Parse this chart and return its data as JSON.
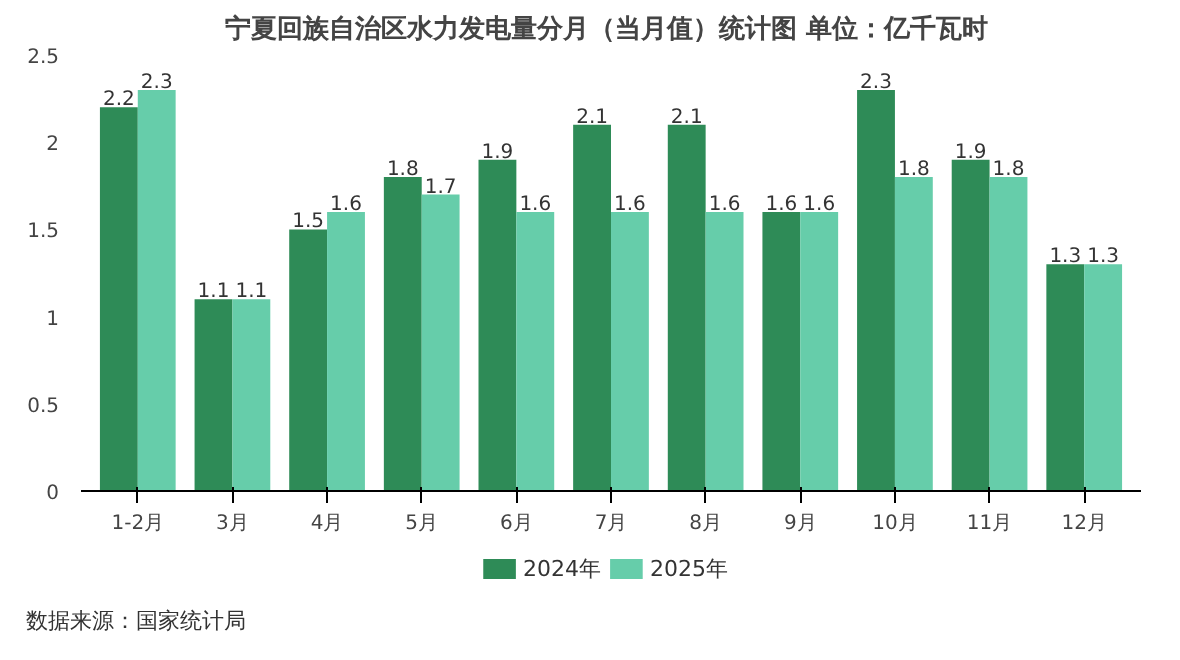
{
  "chart_data": {
    "type": "bar",
    "title": "宁夏回族自治区水力发电量分月（当月值）统计图  单位：亿千瓦时",
    "categories": [
      "1-2月",
      "3月",
      "4月",
      "5月",
      "6月",
      "7月",
      "8月",
      "9月",
      "10月",
      "11月",
      "12月"
    ],
    "series": [
      {
        "name": "2024年",
        "color": "#2e8b57",
        "values": [
          2.2,
          1.1,
          1.5,
          1.8,
          1.9,
          2.1,
          2.1,
          1.6,
          2.3,
          1.9,
          1.3
        ]
      },
      {
        "name": "2025年",
        "color": "#66cdaa",
        "values": [
          2.3,
          1.1,
          1.6,
          1.7,
          1.6,
          1.6,
          1.6,
          1.6,
          1.8,
          1.8,
          1.3
        ]
      }
    ],
    "ylim": [
      0,
      2.5
    ],
    "yticks": [
      0,
      0.5,
      1,
      1.5,
      2,
      2.5
    ],
    "grid": false,
    "legend": "bottom",
    "data_labels": true,
    "annotations": [
      "数据来源：国家统计局"
    ]
  }
}
